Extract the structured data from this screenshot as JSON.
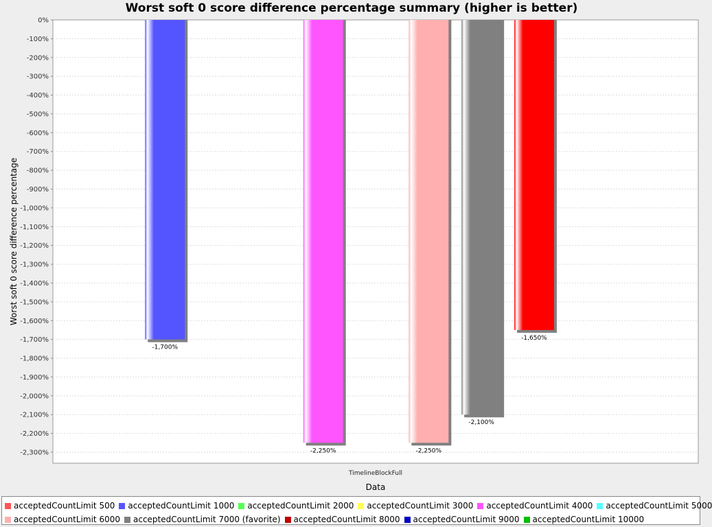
{
  "chart_data": {
    "type": "bar",
    "title": "Worst soft 0 score difference percentage summary (higher is better)",
    "xlabel": "Data",
    "ylabel": "Worst soft 0 score difference percentage",
    "categories": [
      "TimelineBlockFull"
    ],
    "ylim": [
      -2350,
      0
    ],
    "ytick_step": 100,
    "grid": true,
    "legend_position": "bottom",
    "series": [
      {
        "name": "acceptedCountLimit 500",
        "color": "#ff5555",
        "values": [
          null
        ],
        "label": ""
      },
      {
        "name": "acceptedCountLimit 1000",
        "color": "#5555ff",
        "values": [
          -1700
        ],
        "label": "-1,700%"
      },
      {
        "name": "acceptedCountLimit 2000",
        "color": "#55ff55",
        "values": [
          null
        ],
        "label": ""
      },
      {
        "name": "acceptedCountLimit 3000",
        "color": "#ffff55",
        "values": [
          null
        ],
        "label": ""
      },
      {
        "name": "acceptedCountLimit 4000",
        "color": "#ff55ff",
        "values": [
          -2250
        ],
        "label": "-2,250%"
      },
      {
        "name": "acceptedCountLimit 5000",
        "color": "#55ffff",
        "values": [
          null
        ],
        "label": ""
      },
      {
        "name": "acceptedCountLimit 6000",
        "color": "#ffafaf",
        "values": [
          -2250
        ],
        "label": "-2,250%"
      },
      {
        "name": "acceptedCountLimit 7000 (favorite)",
        "color": "#808080",
        "values": [
          -2100
        ],
        "label": "-2,100%"
      },
      {
        "name": "acceptedCountLimit 8000",
        "color": "#c00000",
        "values": [
          -1650
        ],
        "label": "-1,650%"
      },
      {
        "name": "acceptedCountLimit 9000",
        "color": "#0000c0",
        "values": [
          null
        ],
        "label": ""
      },
      {
        "name": "acceptedCountLimit 10000",
        "color": "#00c000",
        "values": [
          null
        ],
        "label": ""
      }
    ],
    "bar_fill_colors": {
      "acceptedCountLimit 8000": "#ff0000"
    }
  }
}
